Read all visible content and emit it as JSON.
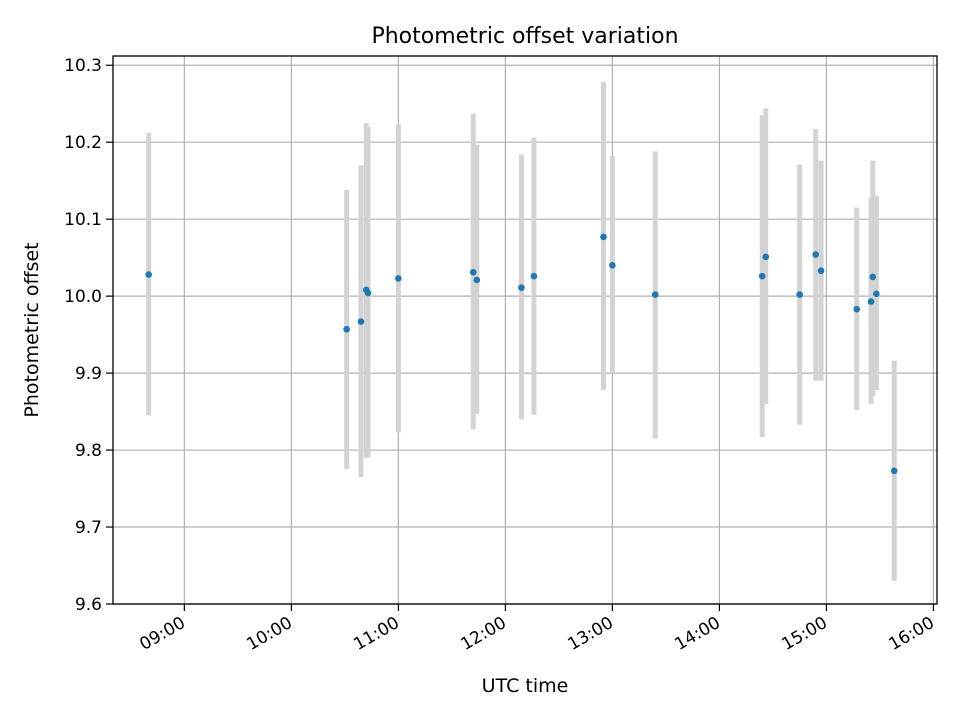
{
  "chart_data": {
    "type": "scatter",
    "title": "Photometric offset variation",
    "xlabel": "UTC time",
    "ylabel": "Photometric offset",
    "x_ticks": [
      "09:00",
      "10:00",
      "11:00",
      "12:00",
      "13:00",
      "14:00",
      "15:00",
      "16:00"
    ],
    "y_ticks": [
      "9.6",
      "9.7",
      "9.8",
      "9.9",
      "10.0",
      "10.1",
      "10.2",
      "10.3"
    ],
    "xlim": [
      "08:20",
      "16:02"
    ],
    "ylim": [
      9.6,
      10.312
    ],
    "grid": true,
    "point_color": "#1f77b4",
    "errorbar_color": "#d3d3d3",
    "points": [
      {
        "x": "08:40",
        "y": 10.028,
        "err_low": 9.845,
        "err_high": 10.212
      },
      {
        "x": "10:31",
        "y": 9.957,
        "err_low": 9.775,
        "err_high": 10.138
      },
      {
        "x": "10:39",
        "y": 9.967,
        "err_low": 9.765,
        "err_high": 10.17
      },
      {
        "x": "10:42",
        "y": 10.008,
        "err_low": 9.79,
        "err_high": 10.225
      },
      {
        "x": "10:43",
        "y": 10.004,
        "err_low": 9.79,
        "err_high": 10.22
      },
      {
        "x": "11:00",
        "y": 10.023,
        "err_low": 9.823,
        "err_high": 10.223
      },
      {
        "x": "11:42",
        "y": 10.031,
        "err_low": 9.827,
        "err_high": 10.237
      },
      {
        "x": "11:44",
        "y": 10.021,
        "err_low": 9.847,
        "err_high": 10.197
      },
      {
        "x": "12:09",
        "y": 10.011,
        "err_low": 9.84,
        "err_high": 10.184
      },
      {
        "x": "12:16",
        "y": 10.026,
        "err_low": 9.846,
        "err_high": 10.206
      },
      {
        "x": "12:55",
        "y": 10.077,
        "err_low": 9.878,
        "err_high": 10.278
      },
      {
        "x": "13:00",
        "y": 10.04,
        "err_low": 9.9,
        "err_high": 10.182
      },
      {
        "x": "13:24",
        "y": 10.002,
        "err_low": 9.815,
        "err_high": 10.188
      },
      {
        "x": "14:24",
        "y": 10.026,
        "err_low": 9.817,
        "err_high": 10.235
      },
      {
        "x": "14:26",
        "y": 10.051,
        "err_low": 9.86,
        "err_high": 10.244
      },
      {
        "x": "14:45",
        "y": 10.002,
        "err_low": 9.833,
        "err_high": 10.171
      },
      {
        "x": "14:54",
        "y": 10.054,
        "err_low": 9.89,
        "err_high": 10.217
      },
      {
        "x": "14:57",
        "y": 10.033,
        "err_low": 9.89,
        "err_high": 10.176
      },
      {
        "x": "15:17",
        "y": 9.983,
        "err_low": 9.852,
        "err_high": 10.115
      },
      {
        "x": "15:25",
        "y": 9.993,
        "err_low": 9.86,
        "err_high": 10.128
      },
      {
        "x": "15:26",
        "y": 10.025,
        "err_low": 9.87,
        "err_high": 10.176
      },
      {
        "x": "15:28",
        "y": 10.003,
        "err_low": 9.878,
        "err_high": 10.13
      },
      {
        "x": "15:38",
        "y": 9.773,
        "err_low": 9.63,
        "err_high": 9.916
      }
    ]
  }
}
